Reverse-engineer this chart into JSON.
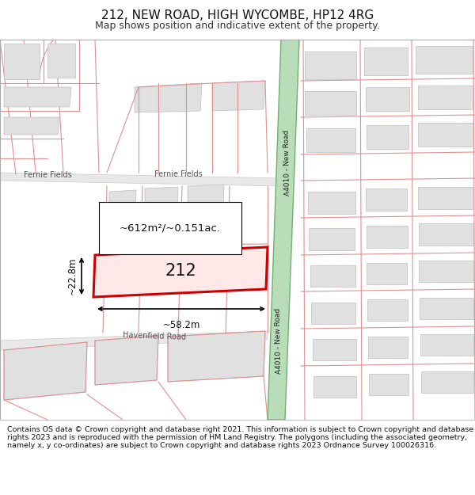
{
  "title": "212, NEW ROAD, HIGH WYCOMBE, HP12 4RG",
  "subtitle": "Map shows position and indicative extent of the property.",
  "footer": "Contains OS data © Crown copyright and database right 2021. This information is subject to Crown copyright and database rights 2023 and is reproduced with the permission of HM Land Registry. The polygons (including the associated geometry, namely x, y co-ordinates) are subject to Crown copyright and database rights 2023 Ordnance Survey 100026316.",
  "map_bg": "#f8f8f8",
  "road_fill": "#b8ddb8",
  "road_edge": "#70b070",
  "building_fill": "#e0e0e0",
  "building_edge": "#c0c0c0",
  "pink": "#e09090",
  "gray_road": "#d8d8d8",
  "highlight_fill": "#ffe8e8",
  "highlight_edge": "#cc0000",
  "highlight_label": "212",
  "area_label": "~612m²/~0.151ac.",
  "width_label": "~58.2m",
  "height_label": "~22.8m",
  "road_label": "A4010 - New Road",
  "street_fernie": "Fernie Fields",
  "street_havenfield": "Havenfield Road",
  "title_fontsize": 11,
  "subtitle_fontsize": 9,
  "footer_fontsize": 6.8
}
